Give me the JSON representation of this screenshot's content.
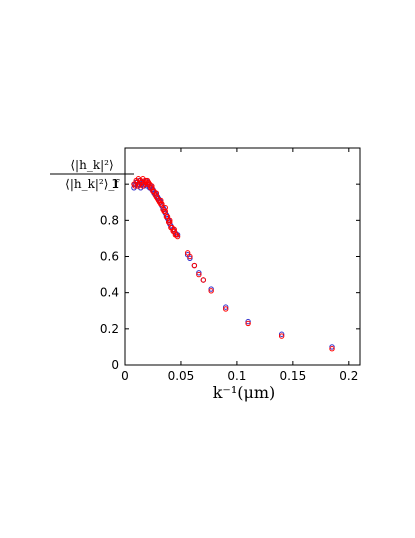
{
  "chart_data": {
    "type": "scatter",
    "title": "",
    "xlabel": "k⁻¹(μm)",
    "ylabel_numerator": "⟨|h_k|²⟩",
    "ylabel_denominator": "⟨|h_k|²⟩_f",
    "xlim": [
      0,
      0.21
    ],
    "ylim": [
      0,
      1.2
    ],
    "xticks": [
      0,
      0.05,
      0.1,
      0.15,
      0.2
    ],
    "xtick_labels": [
      "0",
      "0.05",
      "0.1",
      "0.15",
      "0.2"
    ],
    "yticks": [
      0,
      0.2,
      0.4,
      0.6,
      0.8,
      1.0
    ],
    "ytick_labels": [
      "0",
      "0.2",
      "0.4",
      "0.6",
      "0.8",
      "1"
    ],
    "grid": false,
    "colors": {
      "series_a": "#ff0000",
      "series_b": "#3333cc"
    },
    "series": [
      {
        "marker": "open-circle",
        "color": "#3333cc",
        "points": [
          [
            0.008,
            0.98
          ],
          [
            0.009,
            1.0
          ],
          [
            0.01,
            1.01
          ],
          [
            0.011,
            0.99
          ],
          [
            0.012,
            1.0
          ],
          [
            0.013,
            1.02
          ],
          [
            0.014,
            0.98
          ],
          [
            0.015,
            1.0
          ],
          [
            0.016,
            1.01
          ],
          [
            0.017,
            0.99
          ],
          [
            0.018,
            1.0
          ],
          [
            0.019,
            1.02
          ],
          [
            0.02,
            0.99
          ],
          [
            0.021,
            1.0
          ],
          [
            0.022,
            0.98
          ],
          [
            0.023,
            0.99
          ],
          [
            0.024,
            0.97
          ],
          [
            0.025,
            0.97
          ],
          [
            0.026,
            0.95
          ],
          [
            0.027,
            0.95
          ],
          [
            0.028,
            0.94
          ],
          [
            0.029,
            0.93
          ],
          [
            0.03,
            0.92
          ],
          [
            0.031,
            0.91
          ],
          [
            0.032,
            0.9
          ],
          [
            0.033,
            0.88
          ],
          [
            0.034,
            0.87
          ],
          [
            0.035,
            0.86
          ],
          [
            0.036,
            0.84
          ],
          [
            0.037,
            0.83
          ],
          [
            0.038,
            0.81
          ],
          [
            0.039,
            0.8
          ],
          [
            0.04,
            0.78
          ],
          [
            0.041,
            0.77
          ],
          [
            0.043,
            0.75
          ],
          [
            0.045,
            0.73
          ],
          [
            0.047,
            0.72
          ],
          [
            0.056,
            0.61
          ],
          [
            0.058,
            0.59
          ],
          [
            0.062,
            0.55
          ],
          [
            0.066,
            0.51
          ],
          [
            0.07,
            0.47
          ],
          [
            0.077,
            0.42
          ],
          [
            0.09,
            0.32
          ],
          [
            0.11,
            0.24
          ],
          [
            0.14,
            0.17
          ],
          [
            0.185,
            0.1
          ]
        ]
      },
      {
        "marker": "open-circle",
        "color": "#ff0000",
        "points": [
          [
            0.008,
            1.0
          ],
          [
            0.009,
            0.99
          ],
          [
            0.01,
            1.02
          ],
          [
            0.011,
            1.01
          ],
          [
            0.012,
            0.99
          ],
          [
            0.013,
            1.0
          ],
          [
            0.014,
            1.02
          ],
          [
            0.015,
            1.01
          ],
          [
            0.016,
            0.99
          ],
          [
            0.017,
            1.0
          ],
          [
            0.018,
            1.02
          ],
          [
            0.019,
            1.01
          ],
          [
            0.02,
            1.0
          ],
          [
            0.021,
            1.01
          ],
          [
            0.022,
            1.0
          ],
          [
            0.023,
            0.98
          ],
          [
            0.024,
            0.98
          ],
          [
            0.025,
            0.96
          ],
          [
            0.026,
            0.96
          ],
          [
            0.027,
            0.94
          ],
          [
            0.028,
            0.93
          ],
          [
            0.029,
            0.92
          ],
          [
            0.03,
            0.91
          ],
          [
            0.031,
            0.9
          ],
          [
            0.032,
            0.89
          ],
          [
            0.033,
            0.89
          ],
          [
            0.034,
            0.86
          ],
          [
            0.035,
            0.85
          ],
          [
            0.036,
            0.85
          ],
          [
            0.037,
            0.82
          ],
          [
            0.038,
            0.82
          ],
          [
            0.039,
            0.79
          ],
          [
            0.04,
            0.79
          ],
          [
            0.041,
            0.76
          ],
          [
            0.042,
            0.76
          ],
          [
            0.043,
            0.74
          ],
          [
            0.044,
            0.74
          ],
          [
            0.045,
            0.72
          ],
          [
            0.046,
            0.72
          ],
          [
            0.047,
            0.71
          ],
          [
            0.056,
            0.62
          ],
          [
            0.058,
            0.6
          ],
          [
            0.062,
            0.55
          ],
          [
            0.066,
            0.5
          ],
          [
            0.07,
            0.47
          ],
          [
            0.077,
            0.41
          ],
          [
            0.09,
            0.31
          ],
          [
            0.11,
            0.23
          ],
          [
            0.14,
            0.16
          ],
          [
            0.185,
            0.09
          ],
          [
            0.012,
            1.03
          ],
          [
            0.016,
            1.03
          ],
          [
            0.02,
            1.02
          ],
          [
            0.024,
            0.99
          ],
          [
            0.028,
            0.95
          ],
          [
            0.032,
            0.91
          ],
          [
            0.036,
            0.87
          ],
          [
            0.04,
            0.8
          ],
          [
            0.044,
            0.75
          ]
        ]
      }
    ]
  }
}
